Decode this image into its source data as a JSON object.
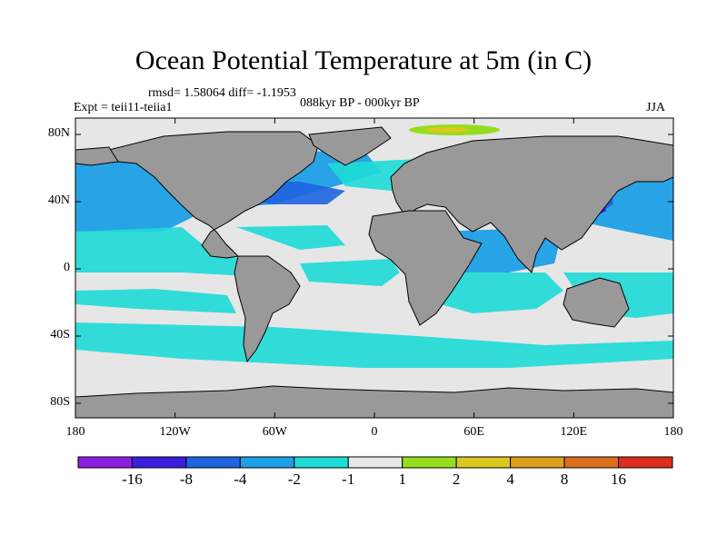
{
  "title": "Ocean Potential Temperature at 5m (in C)",
  "stats": "rmsd= 1.58064 diff= -1.1953",
  "experiment": "Expt = teii11-teiia1",
  "period": "088kyr BP - 000kyr BP",
  "season": "JJA",
  "lat_ticks": [
    "80N",
    "40N",
    "0",
    "40S",
    "80S"
  ],
  "lon_ticks": [
    "180",
    "120W",
    "60W",
    "0",
    "60E",
    "120E",
    "180"
  ],
  "land_color": "#999999",
  "colorbar": {
    "colors": [
      "#8c1ee0",
      "#3c1ee0",
      "#1e64e0",
      "#1ea0e6",
      "#1edcd7",
      "#e6e6e6",
      "#96dc1e",
      "#dcc81e",
      "#dca01e",
      "#dc6e1e",
      "#dc2d1e"
    ],
    "labels": [
      "-16",
      "-8",
      "-4",
      "-2",
      "-1",
      "1",
      "2",
      "4",
      "8",
      "16"
    ]
  }
}
